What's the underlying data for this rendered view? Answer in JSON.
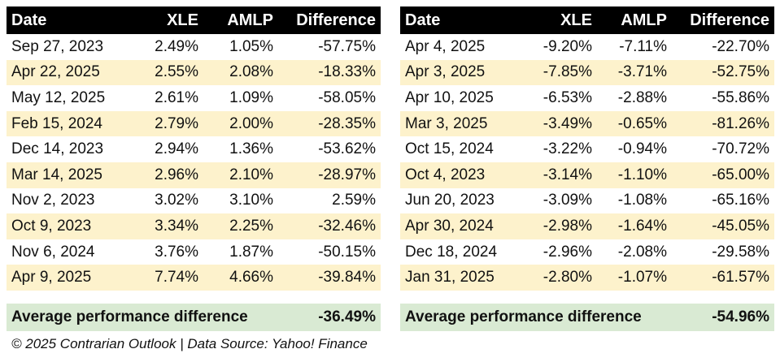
{
  "chart_data": [
    {
      "type": "table",
      "columns": [
        "Date",
        "XLE",
        "AMLP",
        "Difference"
      ],
      "rows": [
        [
          "Sep 27, 2023",
          "2.49%",
          "1.05%",
          "-57.75%"
        ],
        [
          "Apr 22, 2025",
          "2.55%",
          "2.08%",
          "-18.33%"
        ],
        [
          "May 12, 2025",
          "2.61%",
          "1.09%",
          "-58.05%"
        ],
        [
          "Feb 15, 2024",
          "2.79%",
          "2.00%",
          "-28.35%"
        ],
        [
          "Dec 14, 2023",
          "2.94%",
          "1.36%",
          "-53.62%"
        ],
        [
          "Mar 14, 2025",
          "2.96%",
          "2.10%",
          "-28.97%"
        ],
        [
          "Nov 2, 2023",
          "3.02%",
          "3.10%",
          "2.59%"
        ],
        [
          "Oct 9, 2023",
          "3.34%",
          "2.25%",
          "-32.46%"
        ],
        [
          "Nov 6, 2024",
          "3.76%",
          "1.87%",
          "-50.15%"
        ],
        [
          "Apr 9, 2025",
          "7.74%",
          "4.66%",
          "-39.84%"
        ]
      ],
      "summary_label": "Average performance difference",
      "summary_value": "-36.49%"
    },
    {
      "type": "table",
      "columns": [
        "Date",
        "XLE",
        "AMLP",
        "Difference"
      ],
      "rows": [
        [
          "Apr 4, 2025",
          "-9.20%",
          "-7.11%",
          "-22.70%"
        ],
        [
          "Apr 3, 2025",
          "-7.85%",
          "-3.71%",
          "-52.75%"
        ],
        [
          "Apr 10, 2025",
          "-6.53%",
          "-2.88%",
          "-55.86%"
        ],
        [
          "Mar 3, 2025",
          "-3.49%",
          "-0.65%",
          "-81.26%"
        ],
        [
          "Oct 15, 2024",
          "-3.22%",
          "-0.94%",
          "-70.72%"
        ],
        [
          "Oct 4, 2023",
          "-3.14%",
          "-1.10%",
          "-65.00%"
        ],
        [
          "Jun 20, 2023",
          "-3.09%",
          "-1.08%",
          "-65.16%"
        ],
        [
          "Apr 30, 2024",
          "-2.98%",
          "-1.64%",
          "-45.05%"
        ],
        [
          "Dec 18, 2024",
          "-2.96%",
          "-2.08%",
          "-29.58%"
        ],
        [
          "Jan 31, 2025",
          "-2.80%",
          "-1.07%",
          "-61.57%"
        ]
      ],
      "summary_label": "Average performance difference",
      "summary_value": "-54.96%"
    }
  ],
  "footer": {
    "text": "© 2025 Contrarian Outlook  |  Data Source: Yahoo! Finance"
  },
  "colors": {
    "header_bg": "#000000",
    "header_text": "#ffffff",
    "row_stripe": "#fdf2cc",
    "summary_bg": "#d9ead3"
  }
}
